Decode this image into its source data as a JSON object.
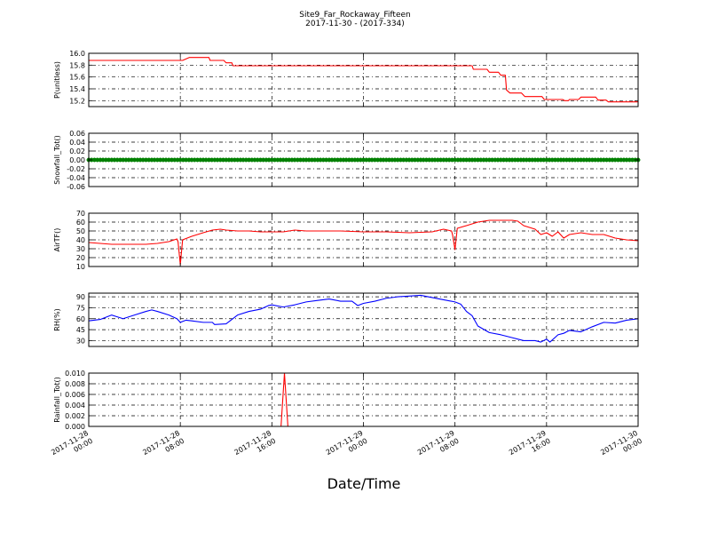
{
  "chart_data": {
    "type": "line",
    "title": "Site9_Far_Rockaway_Fifteen",
    "subtitle": "2017-11-30 - (2017-334)",
    "xlabel": "Date/Time",
    "x_range_hours": [
      0,
      48
    ],
    "x_ticks": [
      {
        "hour": 0,
        "label": "2017-11-28\n00:00"
      },
      {
        "hour": 8,
        "label": "2017-11-28\n08:00"
      },
      {
        "hour": 16,
        "label": "2017-11-28\n16:00"
      },
      {
        "hour": 24,
        "label": "2017-11-29\n00:00"
      },
      {
        "hour": 32,
        "label": "2017-11-29\n08:00"
      },
      {
        "hour": 40,
        "label": "2017-11-29\n16:00"
      },
      {
        "hour": 48,
        "label": "2017-11-30\n00:00"
      }
    ],
    "grid": true,
    "panels": [
      {
        "ylabel": "P(unitless)",
        "ylim": [
          15.1,
          16.0
        ],
        "yticks": [
          15.2,
          15.4,
          15.6,
          15.8,
          16.0
        ],
        "tick_decimals": 1,
        "color": "#ff0000",
        "style": "line",
        "points": [
          [
            0,
            15.88
          ],
          [
            8.2,
            15.88
          ],
          [
            8.8,
            15.93
          ],
          [
            10.5,
            15.93
          ],
          [
            10.6,
            15.88
          ],
          [
            11.8,
            15.88
          ],
          [
            12.0,
            15.84
          ],
          [
            12.5,
            15.84
          ],
          [
            12.6,
            15.79
          ],
          [
            26,
            15.79
          ],
          [
            33.5,
            15.79
          ],
          [
            33.6,
            15.73
          ],
          [
            34.8,
            15.73
          ],
          [
            35,
            15.68
          ],
          [
            35.8,
            15.68
          ],
          [
            36,
            15.63
          ],
          [
            36.4,
            15.63
          ],
          [
            36.5,
            15.38
          ],
          [
            36.8,
            15.33
          ],
          [
            37.8,
            15.33
          ],
          [
            38.1,
            15.27
          ],
          [
            39.6,
            15.27
          ],
          [
            39.8,
            15.22
          ],
          [
            41.4,
            15.22
          ],
          [
            41.6,
            15.2
          ],
          [
            41.9,
            15.2
          ],
          [
            42,
            15.22
          ],
          [
            42.8,
            15.22
          ],
          [
            43,
            15.26
          ],
          [
            44.3,
            15.26
          ],
          [
            44.5,
            15.21
          ],
          [
            45.2,
            15.21
          ],
          [
            45.4,
            15.18
          ],
          [
            48,
            15.18
          ]
        ]
      },
      {
        "ylabel": "Snowfall_Tot()",
        "ylim": [
          -0.06,
          0.06
        ],
        "yticks": [
          -0.06,
          -0.04,
          -0.02,
          0.0,
          0.02,
          0.04,
          0.06
        ],
        "tick_decimals": 2,
        "color": "#008000",
        "style": "markers",
        "constant_value": 0.0,
        "sample_interval_hours": 0.25
      },
      {
        "ylabel": "AirTF()",
        "ylim": [
          10,
          70
        ],
        "yticks": [
          10,
          20,
          30,
          40,
          50,
          60,
          70
        ],
        "tick_decimals": 0,
        "color": "#ff0000",
        "style": "line",
        "points": [
          [
            0,
            37
          ],
          [
            1,
            36
          ],
          [
            2,
            35
          ],
          [
            3,
            35
          ],
          [
            4,
            35
          ],
          [
            5,
            35
          ],
          [
            6,
            36
          ],
          [
            7,
            38
          ],
          [
            7.7,
            41
          ],
          [
            7.8,
            38
          ],
          [
            8.0,
            12
          ],
          [
            8.2,
            40
          ],
          [
            9,
            44
          ],
          [
            10,
            48
          ],
          [
            10.8,
            51
          ],
          [
            11.5,
            52
          ],
          [
            12,
            51
          ],
          [
            13,
            50
          ],
          [
            14,
            50
          ],
          [
            15,
            49
          ],
          [
            16,
            49
          ],
          [
            17,
            49
          ],
          [
            18,
            51
          ],
          [
            19,
            50
          ],
          [
            20,
            50
          ],
          [
            22,
            50
          ],
          [
            24,
            49
          ],
          [
            26,
            49
          ],
          [
            28,
            48
          ],
          [
            30,
            49
          ],
          [
            31,
            52
          ],
          [
            31.7,
            50
          ],
          [
            31.8,
            45
          ],
          [
            32.0,
            29
          ],
          [
            32.2,
            53
          ],
          [
            33,
            56
          ],
          [
            34,
            60
          ],
          [
            35,
            62
          ],
          [
            36,
            62
          ],
          [
            37,
            62
          ],
          [
            37.5,
            61
          ],
          [
            38,
            56
          ],
          [
            39,
            52
          ],
          [
            39.5,
            46
          ],
          [
            40,
            48
          ],
          [
            40.5,
            44
          ],
          [
            41,
            49
          ],
          [
            41.5,
            42
          ],
          [
            42,
            46
          ],
          [
            43,
            48
          ],
          [
            44,
            46
          ],
          [
            45,
            46
          ],
          [
            46,
            42
          ],
          [
            47,
            40
          ],
          [
            48,
            39
          ]
        ]
      },
      {
        "ylabel": "RH(%)",
        "ylim": [
          22,
          95
        ],
        "yticks": [
          30,
          45,
          60,
          75,
          90
        ],
        "tick_decimals": 0,
        "color": "#0000ff",
        "style": "line",
        "points": [
          [
            0,
            57
          ],
          [
            1,
            59
          ],
          [
            2,
            65
          ],
          [
            3,
            60
          ],
          [
            4,
            65
          ],
          [
            5,
            70
          ],
          [
            5.5,
            72
          ],
          [
            6,
            70
          ],
          [
            7,
            65
          ],
          [
            7.7,
            60
          ],
          [
            8,
            55
          ],
          [
            8.5,
            58
          ],
          [
            9,
            57
          ],
          [
            10,
            55
          ],
          [
            10.8,
            55
          ],
          [
            11,
            52
          ],
          [
            12,
            53
          ],
          [
            13,
            65
          ],
          [
            14,
            70
          ],
          [
            15,
            73
          ],
          [
            15.7,
            78
          ],
          [
            16,
            79
          ],
          [
            17,
            76
          ],
          [
            18,
            79
          ],
          [
            19,
            83
          ],
          [
            20,
            85
          ],
          [
            21,
            87
          ],
          [
            22,
            84
          ],
          [
            23,
            84
          ],
          [
            23.5,
            78
          ],
          [
            24,
            81
          ],
          [
            25,
            84
          ],
          [
            26,
            88
          ],
          [
            27,
            90
          ],
          [
            28,
            91
          ],
          [
            29,
            92
          ],
          [
            30,
            89
          ],
          [
            31,
            86
          ],
          [
            32,
            83
          ],
          [
            32.5,
            80
          ],
          [
            33,
            70
          ],
          [
            33.5,
            64
          ],
          [
            34,
            50
          ],
          [
            35,
            41
          ],
          [
            36,
            38
          ],
          [
            37,
            34
          ],
          [
            38,
            30
          ],
          [
            39,
            30
          ],
          [
            39.5,
            28
          ],
          [
            40,
            32
          ],
          [
            40.3,
            28
          ],
          [
            41,
            38
          ],
          [
            41.5,
            40
          ],
          [
            42,
            44
          ],
          [
            43,
            42
          ],
          [
            44,
            49
          ],
          [
            45,
            55
          ],
          [
            46,
            54
          ],
          [
            47,
            58
          ],
          [
            48,
            60
          ]
        ]
      },
      {
        "ylabel": "Rainfall_Tot()",
        "ylim": [
          0,
          0.01
        ],
        "yticks": [
          0.0,
          0.002,
          0.004,
          0.006,
          0.008,
          0.01
        ],
        "tick_decimals": 3,
        "color": "#ff0000",
        "style": "line",
        "points": [
          [
            0,
            0
          ],
          [
            16.8,
            0
          ],
          [
            17.1,
            0.01
          ],
          [
            17.4,
            0
          ],
          [
            48,
            0
          ]
        ]
      }
    ]
  }
}
